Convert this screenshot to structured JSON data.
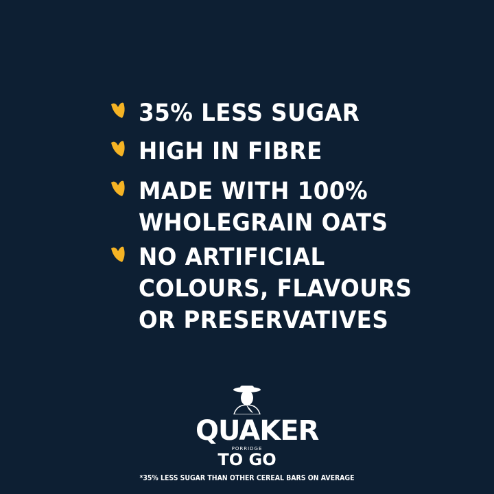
{
  "accent_color": "#f5b324",
  "background_color": "#0d1f33",
  "benefits": [
    {
      "icon": "oat-grain-icon",
      "text": "35% LESS SUGAR"
    },
    {
      "icon": "oat-grain-icon",
      "text": "HIGH IN FIBRE"
    },
    {
      "icon": "oat-grain-icon",
      "text": "MADE WITH 100%\nWHOLEGRAIN OATS"
    },
    {
      "icon": "oat-grain-icon",
      "text": "NO ARTIFICIAL\nCOLOURS, FLAVOURS\nOR PRESERVATIVES"
    }
  ],
  "logo": {
    "brand": "QUAKER",
    "sub": "PORRIDGE",
    "product": "TO GO"
  },
  "footnote": "*35% LESS SUGAR THAN OTHER CEREAL BARS ON AVERAGE"
}
